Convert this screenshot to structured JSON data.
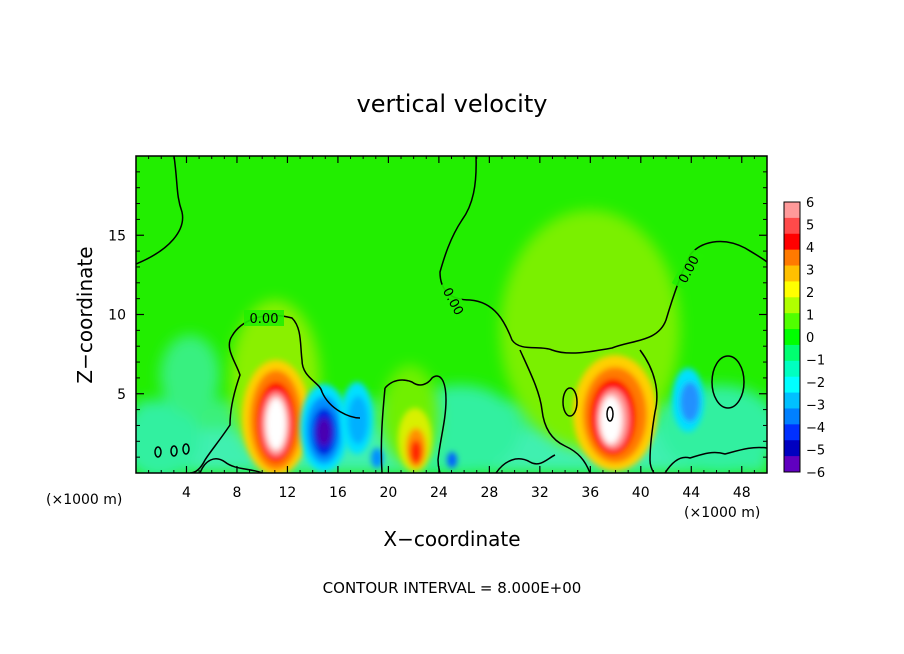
{
  "chart_data": {
    "type": "heatmap",
    "title": "vertical velocity",
    "xlabel": "X−coordinate",
    "ylabel": "Z−coordinate",
    "x_unit_left": "(×1000 m)",
    "x_unit_right": "(×1000 m)",
    "footer": "CONTOUR INTERVAL = 8.000E+00",
    "xlim": [
      0,
      50
    ],
    "ylim": [
      0,
      20
    ],
    "xticks": [
      4,
      8,
      12,
      16,
      20,
      24,
      28,
      32,
      36,
      40,
      44,
      48
    ],
    "xtick_labels": [
      "4",
      "8",
      "12",
      "16",
      "20",
      "24",
      "28",
      "32",
      "36",
      "40",
      "44",
      "48"
    ],
    "yticks": [
      5,
      10,
      15
    ],
    "ytick_labels": [
      "5",
      "10",
      "15"
    ],
    "contour_labels": [
      "0.00",
      "0.00",
      "0.00"
    ],
    "colorbar": {
      "min": -6,
      "max": 6,
      "tick_labels": [
        "6",
        "5",
        "4",
        "3",
        "2",
        "1",
        "0",
        "−1",
        "−2",
        "−3",
        "−4",
        "−5",
        "−6"
      ],
      "colors": [
        "#ff9a9a",
        "#ff4a4a",
        "#ff0000",
        "#ff7a00",
        "#ffc000",
        "#ffff00",
        "#b0ff00",
        "#50ff00",
        "#00ff00",
        "#00ff70",
        "#00ffc0",
        "#00ffff",
        "#00c0ff",
        "#0080ff",
        "#0030ff",
        "#0000c0",
        "#6000c0"
      ]
    },
    "features": [
      {
        "kind": "updraft",
        "x": 11,
        "z": 3,
        "peak": 6
      },
      {
        "kind": "updraft",
        "x": 37.2,
        "z": 3.5,
        "peak": 6
      },
      {
        "kind": "downdraft",
        "x": 15,
        "z": 2.5,
        "peak": -5
      },
      {
        "kind": "downdraft",
        "x": 18,
        "z": 4,
        "peak": -2
      },
      {
        "kind": "updraft",
        "x": 22,
        "z": 1.5,
        "peak": 3
      },
      {
        "kind": "downdraft",
        "x": 43,
        "z": 4.5,
        "peak": -2
      }
    ]
  }
}
